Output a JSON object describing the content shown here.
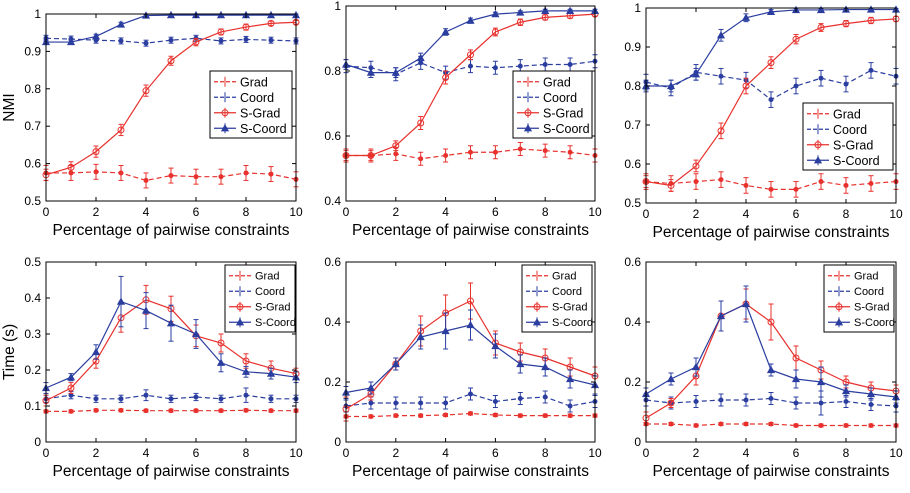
{
  "colors": {
    "red": "#e8312d",
    "blue": "#2b3ea0",
    "axis": "#000000",
    "background": "#ffffff"
  },
  "chart_data": [
    {
      "type": "line",
      "ylabel": "NMI",
      "xlabel": "Percentage of pairwise constraints",
      "xlim": [
        0,
        10
      ],
      "ylim": [
        0.5,
        1
      ],
      "xticks": [
        "0",
        "2",
        "4",
        "6",
        "8",
        "10"
      ],
      "yticks": [
        "0.5",
        "0.6",
        "0.7",
        "0.8",
        "0.9",
        "1"
      ],
      "legend_position": "right",
      "x": [
        0,
        1,
        2,
        3,
        4,
        5,
        6,
        7,
        8,
        9,
        10
      ],
      "series": [
        {
          "name": "Grad",
          "color": "#e8312d",
          "dash": true,
          "marker": "dot",
          "values": [
            0.575,
            0.575,
            0.578,
            0.575,
            0.555,
            0.568,
            0.565,
            0.565,
            0.575,
            0.572,
            0.558
          ],
          "err": [
            0.02,
            0.02,
            0.02,
            0.02,
            0.02,
            0.02,
            0.02,
            0.02,
            0.02,
            0.02,
            0.02
          ]
        },
        {
          "name": "Coord",
          "color": "#2b3ea0",
          "dash": true,
          "marker": "dot",
          "values": [
            0.935,
            0.933,
            0.93,
            0.928,
            0.922,
            0.93,
            0.935,
            0.928,
            0.932,
            0.93,
            0.928
          ],
          "err": [
            0.008,
            0.008,
            0.008,
            0.008,
            0.008,
            0.008,
            0.008,
            0.008,
            0.008,
            0.008,
            0.008
          ]
        },
        {
          "name": "S-Grad",
          "color": "#e8312d",
          "dash": false,
          "marker": "circle",
          "values": [
            0.57,
            0.59,
            0.632,
            0.69,
            0.795,
            0.875,
            0.925,
            0.952,
            0.965,
            0.975,
            0.978
          ],
          "err": [
            0.015,
            0.015,
            0.015,
            0.015,
            0.015,
            0.012,
            0.01,
            0.008,
            0.008,
            0.006,
            0.005
          ]
        },
        {
          "name": "S-Coord",
          "color": "#2b3ea0",
          "dash": false,
          "marker": "triangle",
          "values": [
            0.925,
            0.925,
            0.94,
            0.972,
            0.996,
            0.997,
            0.997,
            0.997,
            0.997,
            0.997,
            0.997
          ],
          "err": [
            0.005,
            0.005,
            0.006,
            0.006,
            0.003,
            0.003,
            0.003,
            0.003,
            0.003,
            0.003,
            0.003
          ]
        }
      ]
    },
    {
      "type": "line",
      "ylabel": "",
      "xlabel": "Percentage of pairwise constraints",
      "xlim": [
        0,
        10
      ],
      "ylim": [
        0.4,
        1
      ],
      "xticks": [
        "0",
        "2",
        "4",
        "6",
        "8",
        "10"
      ],
      "yticks": [
        "0.4",
        "0.6",
        "0.8",
        "1"
      ],
      "legend_position": "right",
      "x": [
        0,
        1,
        2,
        3,
        4,
        5,
        6,
        7,
        8,
        9,
        10
      ],
      "series": [
        {
          "name": "Grad",
          "color": "#e8312d",
          "dash": true,
          "marker": "dot",
          "values": [
            0.54,
            0.54,
            0.545,
            0.53,
            0.54,
            0.55,
            0.55,
            0.56,
            0.555,
            0.55,
            0.54
          ],
          "err": [
            0.02,
            0.02,
            0.02,
            0.02,
            0.02,
            0.02,
            0.02,
            0.02,
            0.02,
            0.02,
            0.02
          ]
        },
        {
          "name": "Coord",
          "color": "#2b3ea0",
          "dash": true,
          "marker": "dot",
          "values": [
            0.815,
            0.81,
            0.79,
            0.825,
            0.795,
            0.815,
            0.81,
            0.815,
            0.82,
            0.82,
            0.83
          ],
          "err": [
            0.02,
            0.02,
            0.02,
            0.02,
            0.02,
            0.02,
            0.02,
            0.02,
            0.02,
            0.02,
            0.02
          ]
        },
        {
          "name": "S-Grad",
          "color": "#e8312d",
          "dash": false,
          "marker": "circle",
          "values": [
            0.54,
            0.54,
            0.57,
            0.64,
            0.78,
            0.85,
            0.92,
            0.95,
            0.965,
            0.97,
            0.975
          ],
          "err": [
            0.015,
            0.015,
            0.015,
            0.02,
            0.02,
            0.015,
            0.012,
            0.01,
            0.008,
            0.008,
            0.006
          ]
        },
        {
          "name": "S-Coord",
          "color": "#2b3ea0",
          "dash": false,
          "marker": "triangle",
          "values": [
            0.82,
            0.795,
            0.795,
            0.84,
            0.92,
            0.955,
            0.975,
            0.98,
            0.985,
            0.985,
            0.985
          ],
          "err": [
            0.015,
            0.015,
            0.015,
            0.015,
            0.01,
            0.008,
            0.006,
            0.005,
            0.005,
            0.005,
            0.005
          ]
        }
      ]
    },
    {
      "type": "line",
      "ylabel": "",
      "xlabel": "Percentage of pairwise constraints",
      "xlim": [
        0,
        10
      ],
      "ylim": [
        0.5,
        1
      ],
      "xticks": [
        "0",
        "2",
        "4",
        "6",
        "8",
        "10"
      ],
      "yticks": [
        "0.5",
        "0.6",
        "0.7",
        "0.8",
        "0.9",
        "1"
      ],
      "legend_position": "bottom-right",
      "x": [
        0,
        1,
        2,
        3,
        4,
        5,
        6,
        7,
        8,
        9,
        10
      ],
      "series": [
        {
          "name": "Grad",
          "color": "#e8312d",
          "dash": true,
          "marker": "dot",
          "values": [
            0.555,
            0.55,
            0.555,
            0.56,
            0.545,
            0.535,
            0.535,
            0.555,
            0.545,
            0.55,
            0.555
          ],
          "err": [
            0.02,
            0.02,
            0.02,
            0.02,
            0.02,
            0.02,
            0.02,
            0.02,
            0.02,
            0.02,
            0.02
          ]
        },
        {
          "name": "Coord",
          "color": "#2b3ea0",
          "dash": true,
          "marker": "dot",
          "values": [
            0.81,
            0.795,
            0.835,
            0.825,
            0.815,
            0.765,
            0.8,
            0.82,
            0.805,
            0.84,
            0.825
          ],
          "err": [
            0.02,
            0.02,
            0.02,
            0.02,
            0.02,
            0.02,
            0.02,
            0.02,
            0.02,
            0.02,
            0.02
          ]
        },
        {
          "name": "S-Grad",
          "color": "#e8312d",
          "dash": false,
          "marker": "circle",
          "values": [
            0.555,
            0.545,
            0.595,
            0.685,
            0.8,
            0.86,
            0.92,
            0.95,
            0.96,
            0.968,
            0.972
          ],
          "err": [
            0.015,
            0.015,
            0.015,
            0.02,
            0.02,
            0.015,
            0.012,
            0.01,
            0.008,
            0.008,
            0.006
          ]
        },
        {
          "name": "S-Coord",
          "color": "#2b3ea0",
          "dash": false,
          "marker": "triangle",
          "values": [
            0.8,
            0.8,
            0.83,
            0.93,
            0.975,
            0.99,
            0.995,
            0.995,
            0.996,
            0.996,
            0.996
          ],
          "err": [
            0.015,
            0.015,
            0.015,
            0.015,
            0.01,
            0.006,
            0.004,
            0.003,
            0.003,
            0.003,
            0.003
          ]
        }
      ]
    },
    {
      "type": "line",
      "ylabel": "Time (s)",
      "xlabel": "Percentage of pairwise constraints",
      "xlim": [
        0,
        10
      ],
      "ylim": [
        0,
        0.5
      ],
      "xticks": [
        "0",
        "2",
        "4",
        "6",
        "8",
        "10"
      ],
      "yticks": [
        "0",
        "0.1",
        "0.2",
        "0.3",
        "0.4",
        "0.5"
      ],
      "legend_position": "top-right",
      "x": [
        0,
        1,
        2,
        3,
        4,
        5,
        6,
        7,
        8,
        9,
        10
      ],
      "series": [
        {
          "name": "Grad",
          "color": "#e8312d",
          "dash": true,
          "marker": "dot",
          "values": [
            0.085,
            0.085,
            0.088,
            0.088,
            0.087,
            0.087,
            0.087,
            0.087,
            0.088,
            0.087,
            0.087
          ],
          "err": [
            0.004,
            0.004,
            0.004,
            0.004,
            0.004,
            0.004,
            0.004,
            0.004,
            0.004,
            0.004,
            0.004
          ]
        },
        {
          "name": "Coord",
          "color": "#2b3ea0",
          "dash": true,
          "marker": "dot",
          "values": [
            0.12,
            0.13,
            0.12,
            0.12,
            0.13,
            0.12,
            0.125,
            0.12,
            0.13,
            0.12,
            0.12
          ],
          "err": [
            0.01,
            0.01,
            0.01,
            0.01,
            0.015,
            0.01,
            0.01,
            0.01,
            0.02,
            0.01,
            0.01
          ]
        },
        {
          "name": "S-Grad",
          "color": "#e8312d",
          "dash": false,
          "marker": "circle",
          "values": [
            0.115,
            0.15,
            0.225,
            0.345,
            0.395,
            0.37,
            0.295,
            0.275,
            0.225,
            0.205,
            0.19
          ],
          "err": [
            0.015,
            0.015,
            0.02,
            0.04,
            0.04,
            0.035,
            0.03,
            0.025,
            0.02,
            0.02,
            0.015
          ]
        },
        {
          "name": "S-Coord",
          "color": "#2b3ea0",
          "dash": false,
          "marker": "triangle",
          "values": [
            0.15,
            0.18,
            0.25,
            0.39,
            0.365,
            0.33,
            0.3,
            0.22,
            0.195,
            0.19,
            0.18
          ],
          "err": [
            0.015,
            0.01,
            0.02,
            0.07,
            0.05,
            0.05,
            0.04,
            0.025,
            0.015,
            0.015,
            0.015
          ]
        }
      ]
    },
    {
      "type": "line",
      "ylabel": "",
      "xlabel": "Percentage of pairwise constraints",
      "xlim": [
        0,
        10
      ],
      "ylim": [
        0,
        0.6
      ],
      "xticks": [
        "0",
        "2",
        "4",
        "6",
        "8",
        "10"
      ],
      "yticks": [
        "0",
        "0.2",
        "0.4",
        "0.6"
      ],
      "legend_position": "top-right",
      "x": [
        0,
        1,
        2,
        3,
        4,
        5,
        6,
        7,
        8,
        9,
        10
      ],
      "series": [
        {
          "name": "Grad",
          "color": "#e8312d",
          "dash": true,
          "marker": "dot",
          "values": [
            0.085,
            0.085,
            0.088,
            0.088,
            0.09,
            0.095,
            0.09,
            0.088,
            0.088,
            0.088,
            0.088
          ],
          "err": [
            0.005,
            0.005,
            0.005,
            0.005,
            0.005,
            0.005,
            0.005,
            0.005,
            0.005,
            0.005,
            0.005
          ]
        },
        {
          "name": "Coord",
          "color": "#2b3ea0",
          "dash": true,
          "marker": "dot",
          "values": [
            0.12,
            0.13,
            0.13,
            0.13,
            0.13,
            0.16,
            0.135,
            0.145,
            0.15,
            0.12,
            0.135
          ],
          "err": [
            0.02,
            0.02,
            0.02,
            0.02,
            0.02,
            0.02,
            0.02,
            0.02,
            0.02,
            0.02,
            0.02
          ]
        },
        {
          "name": "S-Grad",
          "color": "#e8312d",
          "dash": false,
          "marker": "circle",
          "values": [
            0.11,
            0.16,
            0.26,
            0.37,
            0.43,
            0.47,
            0.33,
            0.3,
            0.28,
            0.25,
            0.22
          ],
          "err": [
            0.04,
            0.02,
            0.02,
            0.05,
            0.06,
            0.06,
            0.04,
            0.03,
            0.03,
            0.03,
            0.03
          ]
        },
        {
          "name": "S-Coord",
          "color": "#2b3ea0",
          "dash": false,
          "marker": "triangle",
          "values": [
            0.165,
            0.18,
            0.26,
            0.35,
            0.37,
            0.39,
            0.32,
            0.26,
            0.25,
            0.21,
            0.19
          ],
          "err": [
            0.02,
            0.02,
            0.02,
            0.04,
            0.06,
            0.05,
            0.04,
            0.03,
            0.03,
            0.03,
            0.03
          ]
        }
      ]
    },
    {
      "type": "line",
      "ylabel": "",
      "xlabel": "Percentage of pairwise constraints",
      "xlim": [
        0,
        10
      ],
      "ylim": [
        0,
        0.6
      ],
      "xticks": [
        "0",
        "2",
        "4",
        "6",
        "8",
        "10"
      ],
      "yticks": [
        "0",
        "0.2",
        "0.4",
        "0.6"
      ],
      "legend_position": "top-right",
      "x": [
        0,
        1,
        2,
        3,
        4,
        5,
        6,
        7,
        8,
        9,
        10
      ],
      "series": [
        {
          "name": "Grad",
          "color": "#e8312d",
          "dash": true,
          "marker": "dot",
          "values": [
            0.06,
            0.06,
            0.055,
            0.06,
            0.06,
            0.06,
            0.055,
            0.055,
            0.055,
            0.055,
            0.055
          ],
          "err": [
            0.005,
            0.005,
            0.005,
            0.005,
            0.005,
            0.005,
            0.005,
            0.005,
            0.005,
            0.005,
            0.005
          ]
        },
        {
          "name": "Coord",
          "color": "#2b3ea0",
          "dash": true,
          "marker": "dot",
          "values": [
            0.14,
            0.13,
            0.135,
            0.14,
            0.14,
            0.145,
            0.13,
            0.13,
            0.135,
            0.125,
            0.12
          ],
          "err": [
            0.02,
            0.02,
            0.02,
            0.02,
            0.02,
            0.02,
            0.02,
            0.04,
            0.02,
            0.02,
            0.02
          ]
        },
        {
          "name": "S-Grad",
          "color": "#e8312d",
          "dash": false,
          "marker": "circle",
          "values": [
            0.08,
            0.13,
            0.22,
            0.42,
            0.46,
            0.4,
            0.28,
            0.24,
            0.2,
            0.18,
            0.17
          ],
          "err": [
            0.02,
            0.015,
            0.03,
            0.05,
            0.05,
            0.06,
            0.04,
            0.03,
            0.02,
            0.02,
            0.02
          ]
        },
        {
          "name": "S-Coord",
          "color": "#2b3ea0",
          "dash": false,
          "marker": "triangle",
          "values": [
            0.16,
            0.21,
            0.25,
            0.42,
            0.46,
            0.24,
            0.21,
            0.2,
            0.17,
            0.16,
            0.15
          ],
          "err": [
            0.02,
            0.02,
            0.03,
            0.05,
            0.06,
            0.02,
            0.03,
            0.05,
            0.02,
            0.02,
            0.02
          ]
        }
      ]
    }
  ]
}
